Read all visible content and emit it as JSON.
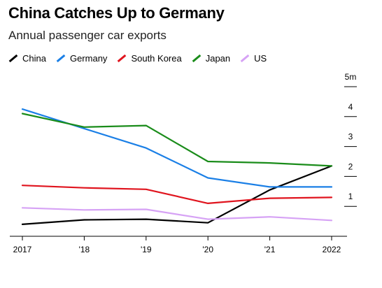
{
  "header": {
    "title": "China Catches Up to Germany",
    "subtitle": "Annual passenger car exports"
  },
  "chart_data": {
    "type": "line",
    "title": "China Catches Up to Germany",
    "subtitle": "Annual passenger car exports",
    "x": [
      "2017",
      "'18",
      "'19",
      "'20",
      "'21",
      "2022"
    ],
    "ylim": [
      0,
      5
    ],
    "y_ticks": [
      {
        "value": 1,
        "label": "1"
      },
      {
        "value": 2,
        "label": "2"
      },
      {
        "value": 3,
        "label": "3"
      },
      {
        "value": 4,
        "label": "4"
      },
      {
        "value": 5,
        "label": "5m"
      }
    ],
    "grid": false,
    "legend_position": "top-left",
    "series": [
      {
        "name": "China",
        "color": "#000000",
        "values": [
          0.4,
          0.55,
          0.57,
          0.45,
          1.55,
          2.35
        ]
      },
      {
        "name": "Germany",
        "color": "#1a7fe6",
        "values": [
          4.25,
          3.6,
          2.95,
          1.95,
          1.65,
          1.65
        ]
      },
      {
        "name": "South Korea",
        "color": "#e0141e",
        "values": [
          1.7,
          1.62,
          1.57,
          1.1,
          1.27,
          1.3
        ]
      },
      {
        "name": "Japan",
        "color": "#1a8c1a",
        "values": [
          4.1,
          3.65,
          3.7,
          2.5,
          2.45,
          2.35
        ]
      },
      {
        "name": "US",
        "color": "#d6a2f5",
        "values": [
          0.95,
          0.88,
          0.9,
          0.57,
          0.65,
          0.53
        ]
      }
    ]
  }
}
